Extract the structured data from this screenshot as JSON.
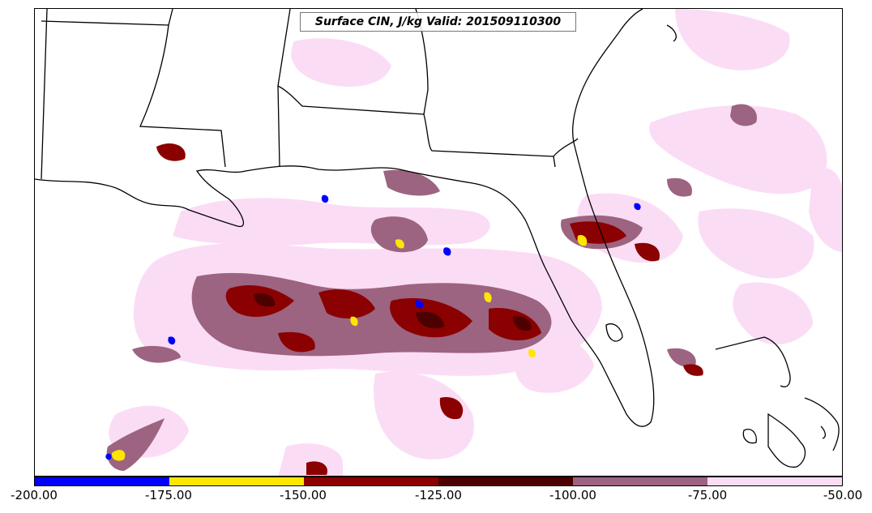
{
  "map": {
    "title": "Surface CIN, J/kg Valid: 201509110300",
    "field": "Surface CIN",
    "units": "J/kg",
    "valid_time": "201509110300",
    "region_coverage": [
      "Louisiana",
      "Mississippi",
      "Alabama",
      "Georgia",
      "Florida",
      "Gulf of Mexico",
      "Cuba",
      "Bahamas"
    ]
  },
  "colorbar": {
    "min": -200.0,
    "max": -50.0,
    "tick_labels": [
      "-200.00",
      "-175.00",
      "-150.00",
      "-125.00",
      "-100.00",
      "-75.00",
      "-50.00"
    ],
    "bins": [
      {
        "range": [
          -200,
          -175
        ],
        "color": "#0000ff"
      },
      {
        "range": [
          -175,
          -150
        ],
        "color": "#ffe600"
      },
      {
        "range": [
          -150,
          -125
        ],
        "color": "#8b0000"
      },
      {
        "range": [
          -125,
          -100
        ],
        "color": "#4d0000"
      },
      {
        "range": [
          -100,
          -75
        ],
        "color": "#9c6480"
      },
      {
        "range": [
          -75,
          -50
        ],
        "color": "#fbdcf5"
      }
    ]
  }
}
